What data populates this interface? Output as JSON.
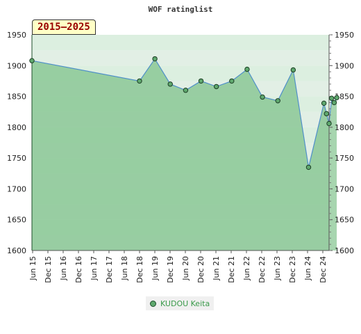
{
  "chart_data": {
    "type": "area",
    "title": "WOF ratinglist",
    "period_label": "2015–2025",
    "ylim": [
      1600,
      1950
    ],
    "yticks": [
      1600,
      1650,
      1700,
      1750,
      1800,
      1850,
      1900,
      1950
    ],
    "xlim": [
      "2015-06",
      "2025-01"
    ],
    "xticks": [
      "Jun 15",
      "Dec 15",
      "Jun 16",
      "Dec 16",
      "Jun 17",
      "Dec 17",
      "Jun 18",
      "Dec 18",
      "Jun 19",
      "Dec 19",
      "Jun 20",
      "Dec 20",
      "Jun 21",
      "Dec 21",
      "Jun 22",
      "Dec 22",
      "Jun 23",
      "Dec 23",
      "Jun 24",
      "Dec 24"
    ],
    "series": [
      {
        "name": "KUDOU Keita",
        "color": "#5fa86e",
        "points": [
          {
            "x": "2015-06",
            "y": 1908
          },
          {
            "x": "2018-12",
            "y": 1875
          },
          {
            "x": "2019-06",
            "y": 1911
          },
          {
            "x": "2019-12",
            "y": 1870
          },
          {
            "x": "2020-06",
            "y": 1860
          },
          {
            "x": "2020-12",
            "y": 1875
          },
          {
            "x": "2021-06",
            "y": 1866
          },
          {
            "x": "2021-12",
            "y": 1875
          },
          {
            "x": "2022-06",
            "y": 1894
          },
          {
            "x": "2022-12",
            "y": 1849
          },
          {
            "x": "2023-06",
            "y": 1843
          },
          {
            "x": "2023-12",
            "y": 1893
          },
          {
            "x": "2024-06",
            "y": 1735
          },
          {
            "x": "2024-12",
            "y": 1839
          },
          {
            "x": "2025-01",
            "y": 1822
          },
          {
            "x": "2025-02",
            "y": 1806
          },
          {
            "x": "2025-03",
            "y": 1847
          },
          {
            "x": "2025-04",
            "y": 1840
          },
          {
            "x": "2025-05",
            "y": 1848
          }
        ]
      }
    ],
    "grid": true,
    "legend_position": "bottom"
  }
}
